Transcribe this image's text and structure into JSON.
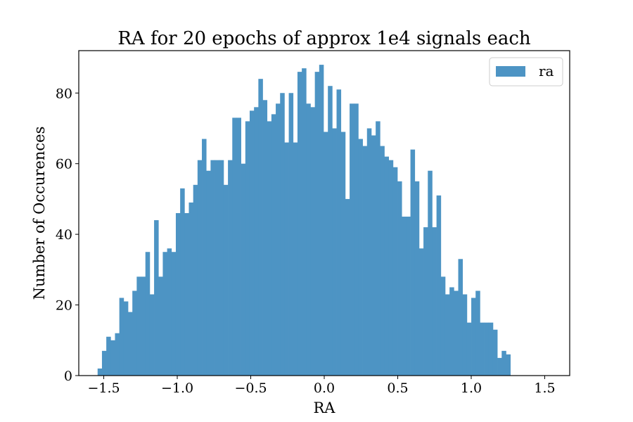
{
  "chart_data": {
    "type": "bar",
    "subtype": "histogram",
    "title": "RA for 20 epochs of approx 1e4 signals each",
    "xlabel": "RA",
    "ylabel": "Number of Occurences",
    "xlim": [
      -1.67,
      1.67
    ],
    "ylim": [
      0,
      92
    ],
    "x_ticks": [
      -1.5,
      -1.0,
      -0.5,
      0.0,
      0.5,
      1.0,
      1.5
    ],
    "x_tick_labels": [
      "−1.5",
      "−1.0",
      "−0.5",
      "0.0",
      "0.5",
      "1.0",
      "1.5"
    ],
    "y_ticks": [
      0,
      20,
      40,
      60,
      80
    ],
    "y_tick_labels": [
      "0",
      "20",
      "40",
      "60",
      "80"
    ],
    "grid": false,
    "legend_position": "top-right",
    "series": [
      {
        "name": "ra",
        "color": "#4d94c4",
        "bin_start": -1.5419,
        "bin_width": 0.02956,
        "values": [
          2,
          7,
          11,
          10,
          12,
          22,
          21,
          18,
          24,
          28,
          28,
          35,
          23,
          44,
          28,
          35,
          36,
          35,
          46,
          53,
          46,
          49,
          54,
          61,
          67,
          58,
          61,
          61,
          61,
          54,
          61,
          73,
          73,
          60,
          72,
          75,
          76,
          84,
          78,
          72,
          74,
          77,
          80,
          66,
          80,
          66,
          86,
          87,
          77,
          76,
          86,
          88,
          69,
          82,
          70,
          81,
          69,
          50,
          77,
          77,
          67,
          65,
          70,
          68,
          72,
          65,
          62,
          61,
          59,
          55,
          45,
          45,
          64,
          55,
          36,
          42,
          58,
          42,
          51,
          28,
          23,
          25,
          24,
          33,
          23,
          15,
          22,
          24,
          15,
          15,
          15,
          13,
          5,
          7,
          6
        ]
      }
    ]
  }
}
